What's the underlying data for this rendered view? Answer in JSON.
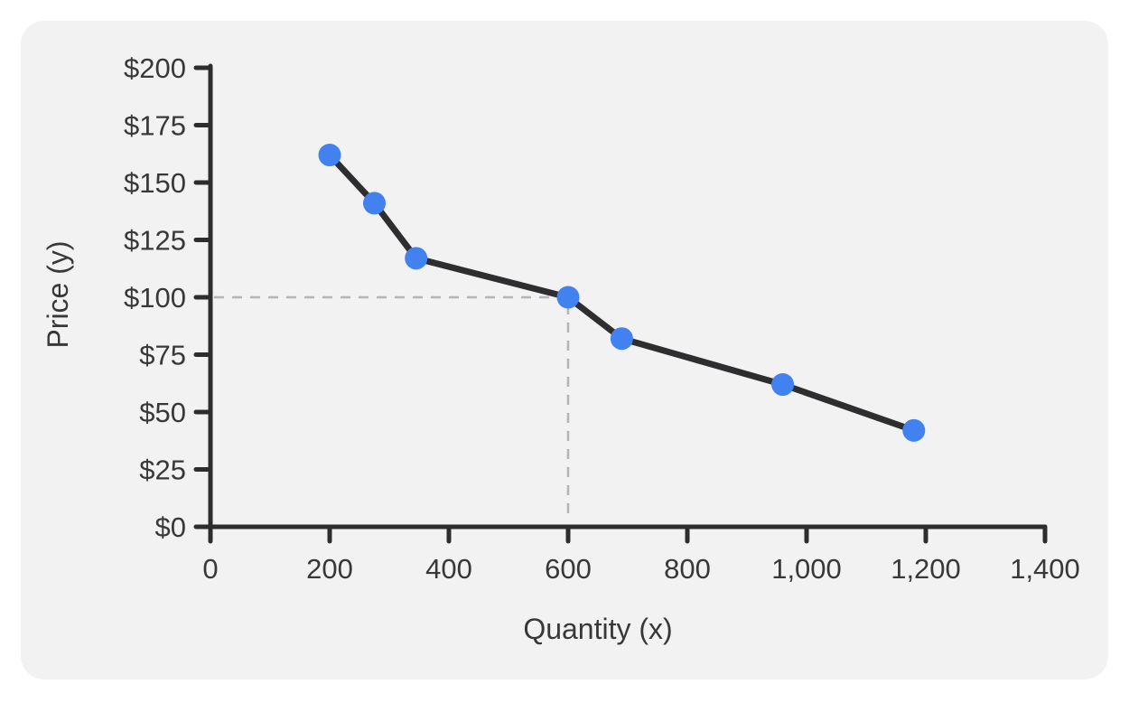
{
  "card": {
    "background": "#f2f2f3"
  },
  "chart_data": {
    "type": "line",
    "xlabel": "Quantity (x)",
    "ylabel": "Price (y)",
    "x": [
      200,
      275,
      345,
      600,
      690,
      960,
      1180
    ],
    "y": [
      162,
      141,
      117,
      100,
      82,
      62,
      42
    ],
    "xlim": [
      0,
      1400
    ],
    "ylim": [
      0,
      200
    ],
    "x_ticks": [
      0,
      200,
      400,
      600,
      800,
      1000,
      1200,
      1400
    ],
    "x_tick_labels": [
      "0",
      "200",
      "400",
      "600",
      "800",
      "1,000",
      "1,200",
      "1,400"
    ],
    "y_ticks": [
      0,
      25,
      50,
      75,
      100,
      125,
      150,
      175,
      200
    ],
    "y_tick_labels": [
      "$0",
      "$25",
      "$50",
      "$75",
      "$100",
      "$125",
      "$150",
      "$175",
      "$200"
    ],
    "reference_point": {
      "x": 600,
      "y": 100
    },
    "grid": false,
    "legend": "none",
    "colors": {
      "line": "#2e2e30",
      "marker": "#4181f0",
      "dashed": "#b3b5b8",
      "axis": "#2d2d2d",
      "text": "#383838"
    }
  }
}
